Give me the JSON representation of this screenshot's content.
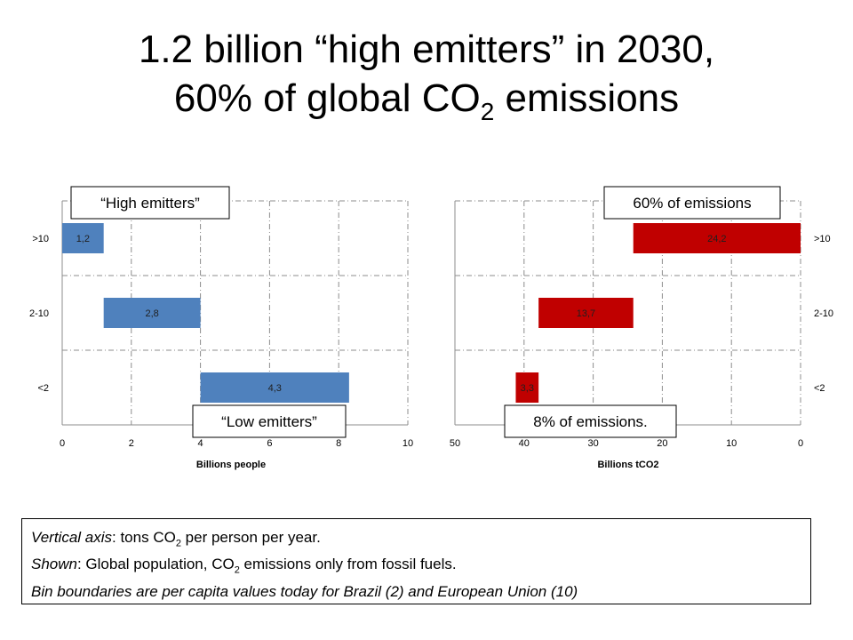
{
  "title": {
    "line1": "1.2 billion “high emitters” in 2030,",
    "line2_pre": "60% of global CO",
    "line2_sub": "2",
    "line2_post": " emissions"
  },
  "chart_data": [
    {
      "type": "bar",
      "orientation": "horizontal",
      "categories": [
        ">10",
        "2-10",
        "<2"
      ],
      "series": [
        {
          "values": [
            1.2,
            2.8,
            4.3
          ],
          "color": "#4f81bd",
          "offsets": [
            0,
            1.2,
            4.0
          ]
        }
      ],
      "data_labels": [
        "1,2",
        "2,8",
        "4,3"
      ],
      "xlabel": "Billions people",
      "xlim": [
        0,
        10
      ],
      "xticks": [
        "0",
        "2",
        "4",
        "6",
        "8",
        "10"
      ],
      "grid": "dash-dot",
      "callouts": {
        "top": "“High emitters”",
        "bottom": "“Low emitters”"
      }
    },
    {
      "type": "bar",
      "orientation": "horizontal",
      "reversed_x": true,
      "categories": [
        ">10",
        "2-10",
        "<2"
      ],
      "series": [
        {
          "values": [
            24.2,
            13.7,
            3.3
          ],
          "color": "#c00000",
          "offsets": [
            0,
            24.2,
            37.9
          ]
        }
      ],
      "data_labels": [
        "24,2",
        "13,7",
        "3,3"
      ],
      "xlabel": "Billions tCO2",
      "xlim": [
        50,
        0
      ],
      "xticks": [
        "50",
        "40",
        "30",
        "20",
        "10",
        "0"
      ],
      "grid": "dash-dot",
      "callouts": {
        "top": "60% of emissions",
        "bottom": "8% of emissions."
      }
    }
  ],
  "note": {
    "line1": {
      "italic": "Vertical axis",
      "text_pre": ": tons CO",
      "sub": "2",
      "text_post": " per person per year."
    },
    "line2": {
      "italic": "Shown",
      "text_pre": ": Global population, CO",
      "sub": "2",
      "text_post": " emissions only from fossil fuels."
    },
    "line3": "Bin boundaries are per capita values today for Brazil (2) and European Union (10)"
  }
}
